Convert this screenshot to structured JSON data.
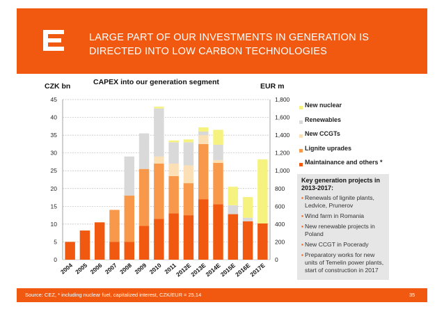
{
  "header": {
    "title_line1": "LARGE PART OF OUR INVESTMENTS IN GENERATION IS",
    "title_line2": "DIRECTED INTO LOW CARBON TECHNOLOGIES",
    "accent_color": "#f0590f"
  },
  "chart_data": {
    "type": "bar",
    "stacked": true,
    "title": "CAPEX into our generation segment",
    "ylabel_left": "CZK bn",
    "ylabel_right": "EUR m",
    "ylim_left": [
      0,
      45
    ],
    "ylim_right": [
      0,
      1800
    ],
    "yticks_left": [
      "0",
      "5",
      "10",
      "15",
      "20",
      "25",
      "30",
      "35",
      "40",
      "45"
    ],
    "yticks_right": [
      "0",
      "200",
      "400",
      "600",
      "800",
      "1,000",
      "1,200",
      "1,400",
      "1,600",
      "1,800"
    ],
    "categories": [
      "2004",
      "2005",
      "2006",
      "2007",
      "2008",
      "2009",
      "2010",
      "2011",
      "2012E",
      "2013E",
      "2014E",
      "2015E",
      "2016E",
      "2017E"
    ],
    "series": [
      {
        "name": "Maintainance and others *",
        "color": "#f0590f",
        "values": [
          5,
          8.2,
          10.5,
          5,
          5,
          9.5,
          11.5,
          13,
          12.5,
          17,
          15.6,
          12.8,
          10.8,
          10.2
        ]
      },
      {
        "name": "Lignite uprades",
        "color": "#f7984a",
        "values": [
          0,
          0,
          0,
          9,
          13,
          16,
          15.5,
          10.5,
          9,
          15.5,
          11.6,
          0,
          0,
          0
        ]
      },
      {
        "name": "New CCGTs",
        "color": "#fbe0b5",
        "values": [
          0,
          0,
          0,
          0,
          0,
          0,
          2,
          3.5,
          5,
          2.5,
          0.8,
          0,
          0,
          0
        ]
      },
      {
        "name": "Renewables",
        "color": "#d9d9d9",
        "values": [
          0,
          0,
          0,
          0,
          11,
          10,
          13.5,
          6,
          6.5,
          1,
          4.3,
          2.5,
          1,
          0
        ]
      },
      {
        "name": "New nuclear",
        "color": "#f6f280",
        "values": [
          0,
          0,
          0,
          0,
          0,
          0,
          0.5,
          0.5,
          0.8,
          1.2,
          4.2,
          5.2,
          5.8,
          18
        ]
      }
    ]
  },
  "legend": {
    "items": [
      {
        "label": "New nuclear",
        "color": "#f6f280"
      },
      {
        "label": "Renewables",
        "color": "#d9d9d9"
      },
      {
        "label": "New CCGTs",
        "color": "#fbe0b5"
      },
      {
        "label": "Lignite uprades",
        "color": "#f7984a"
      },
      {
        "label": "Maintainance and others *",
        "color": "#f0590f"
      }
    ]
  },
  "projects": {
    "title": "Key generation projects in 2013-2017:",
    "items": [
      "Renewals of lignite plants, Ledvice, Prunerov",
      "Wind farm in Romania",
      "New renewable projects in Poland",
      "New CCGT in Pocerady",
      "Preparatory works for new units of Temelin power plants, start of construction in 2017"
    ]
  },
  "footer": {
    "source": "Source: CEZ, * including nuclear fuel, capitalized interest, CZK/EUR = 25,14",
    "page_number": "35"
  }
}
